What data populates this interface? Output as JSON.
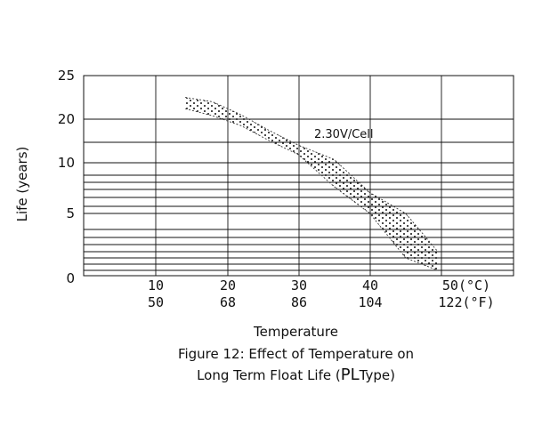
{
  "chart_data": {
    "type": "area",
    "title": "Figure 12: Effect of Temperature on",
    "subtitle_prefix": "Long Term Float Life (",
    "subtitle_emph": "PL",
    "subtitle_suffix": "Type)",
    "xlabel": "Temperature",
    "ylabel": "Life (years)",
    "annotation": "2.30V/Cell",
    "x_unit_c": "(°C)",
    "x_unit_f": "(°F)",
    "x_ticks": [
      {
        "c": "10",
        "f": "50"
      },
      {
        "c": "20",
        "f": "68"
      },
      {
        "c": "30",
        "f": "86"
      },
      {
        "c": "40",
        "f": "104"
      },
      {
        "c": "50",
        "f": "122"
      }
    ],
    "y_ticks": [
      "0",
      "5",
      "10",
      "20",
      "25"
    ],
    "xlim_c": [
      0,
      50
    ],
    "grid": true,
    "series": [
      {
        "values_upper": [
          [
            14.2,
            22.5
          ],
          [
            18,
            22
          ],
          [
            22,
            20.5
          ],
          [
            26,
            17.5
          ],
          [
            30,
            14.3
          ],
          [
            35,
            10.8
          ],
          [
            40,
            7.6
          ],
          [
            45,
            5.0
          ],
          [
            49.5,
            3.0
          ]
        ],
        "values_lower": [
          [
            14.2,
            21.2
          ],
          [
            18,
            20.4
          ],
          [
            22,
            18.6
          ],
          [
            26,
            15.3
          ],
          [
            30,
            12.0
          ],
          [
            35,
            8.4
          ],
          [
            40,
            5.0
          ],
          [
            45,
            2.5
          ],
          [
            49.5,
            1.0
          ]
        ]
      }
    ]
  }
}
